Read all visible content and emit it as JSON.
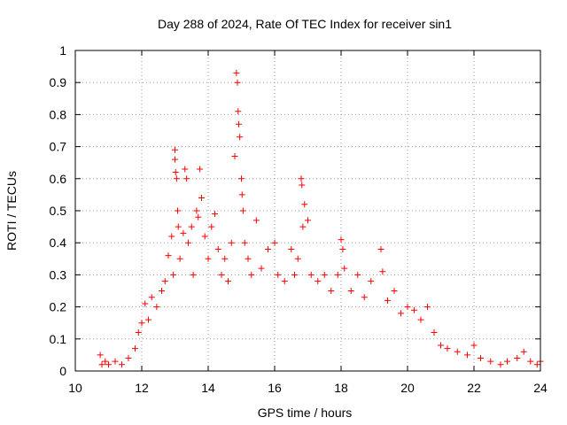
{
  "chart_data": {
    "type": "scatter",
    "title": "Day 288 of 2024, Rate Of TEC Index for receiver sin1",
    "xlabel": "GPS time / hours",
    "ylabel": "ROTI / TECUs",
    "xlim": [
      10,
      24
    ],
    "ylim": [
      0,
      1
    ],
    "xticks": [
      10,
      12,
      14,
      16,
      18,
      20,
      22,
      24
    ],
    "xtick_labels": [
      "10",
      "12",
      "14",
      "16",
      "18",
      "20",
      "22",
      "24"
    ],
    "yticks": [
      0,
      0.1,
      0.2,
      0.3,
      0.4,
      0.5,
      0.6,
      0.7,
      0.8,
      0.9,
      1
    ],
    "ytick_labels": [
      "0",
      "0.1",
      "0.2",
      "0.3",
      "0.4",
      "0.5",
      "0.6",
      "0.7",
      "0.8",
      "0.9",
      "1"
    ],
    "grid": true,
    "legend": "none",
    "marker": "plus",
    "color": "#ff0000",
    "series": [
      {
        "values": [
          [
            10.75,
            0.05
          ],
          [
            10.8,
            0.02
          ],
          [
            10.9,
            0.03
          ],
          [
            11.0,
            0.02
          ],
          [
            11.2,
            0.03
          ],
          [
            11.4,
            0.02
          ],
          [
            11.6,
            0.04
          ],
          [
            11.8,
            0.07
          ],
          [
            11.9,
            0.12
          ],
          [
            12.0,
            0.15
          ],
          [
            12.1,
            0.21
          ],
          [
            12.2,
            0.16
          ],
          [
            12.3,
            0.23
          ],
          [
            12.45,
            0.2
          ],
          [
            12.6,
            0.25
          ],
          [
            12.7,
            0.28
          ],
          [
            12.8,
            0.36
          ],
          [
            12.9,
            0.42
          ],
          [
            12.95,
            0.3
          ],
          [
            13.0,
            0.69
          ],
          [
            13.0,
            0.66
          ],
          [
            13.02,
            0.62
          ],
          [
            13.05,
            0.6
          ],
          [
            13.08,
            0.5
          ],
          [
            13.1,
            0.45
          ],
          [
            13.15,
            0.35
          ],
          [
            13.25,
            0.43
          ],
          [
            13.3,
            0.63
          ],
          [
            13.35,
            0.6
          ],
          [
            13.4,
            0.4
          ],
          [
            13.5,
            0.45
          ],
          [
            13.55,
            0.3
          ],
          [
            13.65,
            0.5
          ],
          [
            13.7,
            0.48
          ],
          [
            13.75,
            0.63
          ],
          [
            13.8,
            0.54
          ],
          [
            13.9,
            0.42
          ],
          [
            14.0,
            0.35
          ],
          [
            14.1,
            0.45
          ],
          [
            14.2,
            0.49
          ],
          [
            14.3,
            0.38
          ],
          [
            14.4,
            0.3
          ],
          [
            14.5,
            0.35
          ],
          [
            14.6,
            0.28
          ],
          [
            14.7,
            0.4
          ],
          [
            14.8,
            0.67
          ],
          [
            14.85,
            0.93
          ],
          [
            14.88,
            0.9
          ],
          [
            14.9,
            0.81
          ],
          [
            14.92,
            0.77
          ],
          [
            14.95,
            0.73
          ],
          [
            15.0,
            0.6
          ],
          [
            15.02,
            0.55
          ],
          [
            15.05,
            0.5
          ],
          [
            15.1,
            0.4
          ],
          [
            15.2,
            0.35
          ],
          [
            15.3,
            0.3
          ],
          [
            15.45,
            0.47
          ],
          [
            15.6,
            0.32
          ],
          [
            15.8,
            0.38
          ],
          [
            16.0,
            0.4
          ],
          [
            16.1,
            0.3
          ],
          [
            16.3,
            0.28
          ],
          [
            16.5,
            0.38
          ],
          [
            16.6,
            0.3
          ],
          [
            16.7,
            0.35
          ],
          [
            16.8,
            0.6
          ],
          [
            16.82,
            0.58
          ],
          [
            16.85,
            0.45
          ],
          [
            16.9,
            0.52
          ],
          [
            17.0,
            0.47
          ],
          [
            17.1,
            0.3
          ],
          [
            17.3,
            0.28
          ],
          [
            17.5,
            0.3
          ],
          [
            17.7,
            0.25
          ],
          [
            17.9,
            0.3
          ],
          [
            18.0,
            0.41
          ],
          [
            18.05,
            0.38
          ],
          [
            18.1,
            0.32
          ],
          [
            18.3,
            0.25
          ],
          [
            18.5,
            0.3
          ],
          [
            18.7,
            0.23
          ],
          [
            18.9,
            0.28
          ],
          [
            19.2,
            0.38
          ],
          [
            19.25,
            0.31
          ],
          [
            19.4,
            0.22
          ],
          [
            19.6,
            0.25
          ],
          [
            19.8,
            0.18
          ],
          [
            20.0,
            0.2
          ],
          [
            20.2,
            0.19
          ],
          [
            20.4,
            0.16
          ],
          [
            20.6,
            0.2
          ],
          [
            20.8,
            0.12
          ],
          [
            21.0,
            0.08
          ],
          [
            21.2,
            0.07
          ],
          [
            21.5,
            0.06
          ],
          [
            21.8,
            0.05
          ],
          [
            22.0,
            0.08
          ],
          [
            22.2,
            0.04
          ],
          [
            22.5,
            0.03
          ],
          [
            22.8,
            0.02
          ],
          [
            23.0,
            0.03
          ],
          [
            23.3,
            0.04
          ],
          [
            23.5,
            0.06
          ],
          [
            23.7,
            0.03
          ],
          [
            23.9,
            0.02
          ],
          [
            24.0,
            0.03
          ]
        ]
      }
    ]
  }
}
